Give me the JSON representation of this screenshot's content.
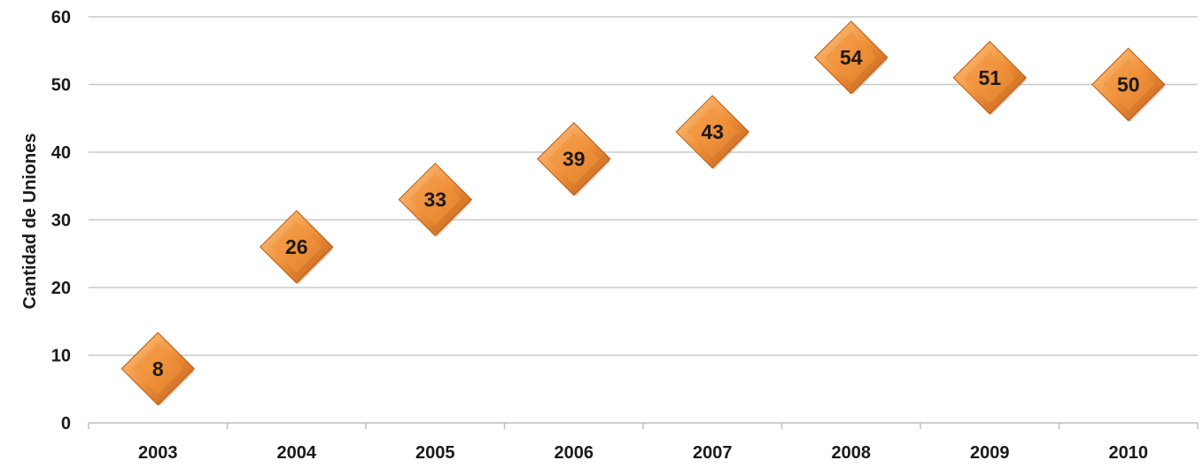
{
  "chart_data": {
    "type": "scatter",
    "title": "",
    "xlabel": "",
    "ylabel": "Cantidad de Uniones",
    "categories": [
      "2003",
      "2004",
      "2005",
      "2006",
      "2007",
      "2008",
      "2009",
      "2010"
    ],
    "values": [
      8,
      26,
      33,
      39,
      43,
      54,
      51,
      50
    ],
    "ylim": [
      0,
      60
    ],
    "yticks": [
      0,
      10,
      20,
      30,
      40,
      50,
      60
    ],
    "grid": true,
    "marker": "diamond",
    "data_labels": true,
    "colors": {
      "marker_light": "#fbc98c",
      "marker_mid": "#f0913a",
      "marker_dark": "#b85a17",
      "gridline": "#c8c8c8",
      "axis": "#bdbdbd",
      "text": "#1a1a1a"
    }
  }
}
